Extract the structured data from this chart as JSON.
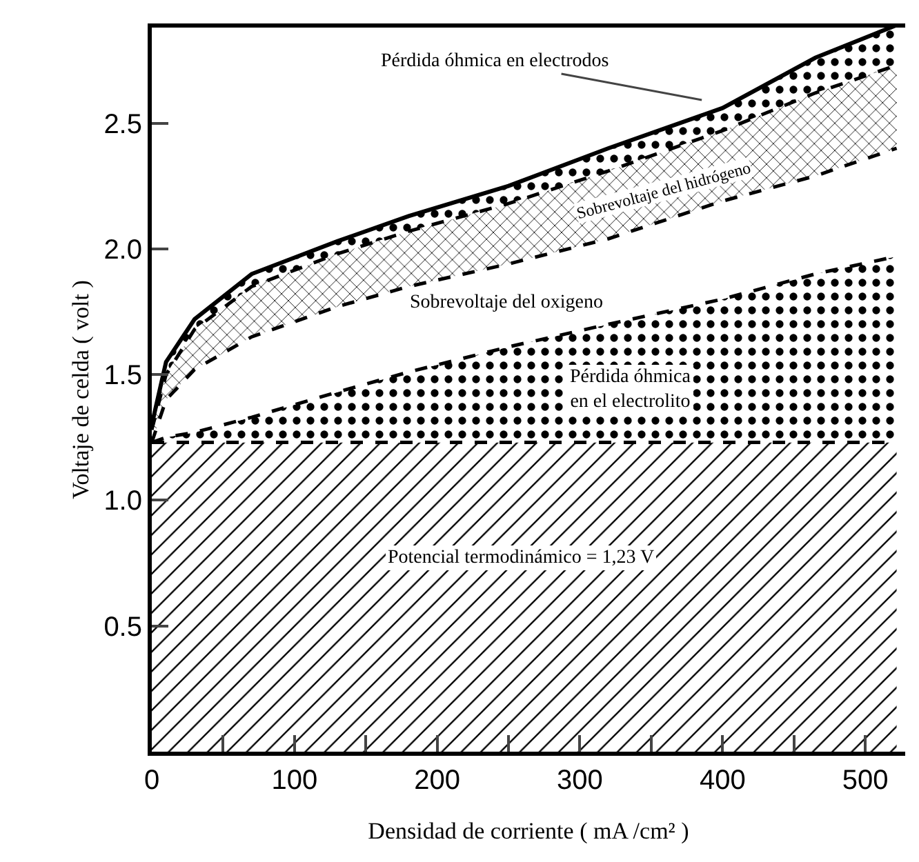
{
  "chart_data": {
    "type": "area",
    "stacked": true,
    "xlabel": "Densidad de corriente ( mA /cm² )",
    "ylabel": "Voltaje de celda ( volt )",
    "x": [
      0,
      10,
      30,
      70,
      130,
      180,
      250,
      320,
      400,
      465,
      522
    ],
    "series": [
      {
        "color": "#000000",
        "line_style": "dashed",
        "values": [
          1.23,
          1.23,
          1.23,
          1.23,
          1.23,
          1.23,
          1.23,
          1.23,
          1.23,
          1.23,
          1.23
        ]
      },
      {
        "color": "#000000",
        "line_style": "dashed",
        "values": [
          0,
          0.02,
          0.04,
          0.1,
          0.2,
          0.28,
          0.38,
          0.47,
          0.57,
          0.67,
          0.74
        ]
      },
      {
        "color": "#000000",
        "line_style": "dashed",
        "values": [
          0,
          0.15,
          0.25,
          0.32,
          0.34,
          0.34,
          0.33,
          0.34,
          0.39,
          0.39,
          0.43
        ]
      },
      {
        "color": "#000000",
        "line_style": "dashed",
        "values": [
          0.05,
          0.1,
          0.16,
          0.2,
          0.21,
          0.22,
          0.24,
          0.27,
          0.28,
          0.33,
          0.33
        ]
      },
      {
        "color": "#000000",
        "line_style": "solid",
        "values": [
          0.02,
          0.05,
          0.04,
          0.05,
          0.05,
          0.06,
          0.07,
          0.09,
          0.09,
          0.14,
          0.16
        ]
      }
    ],
    "xlim": [
      0,
      528
    ],
    "ylim": [
      0,
      2.88
    ],
    "xticks": [
      0,
      {
        "value": 50,
        "label": null
      },
      100,
      {
        "value": 150,
        "label": null
      },
      200,
      {
        "value": 250,
        "label": null
      },
      300,
      {
        "value": 350,
        "label": null
      },
      400,
      {
        "value": 450,
        "label": null
      },
      500
    ],
    "yticks": [
      0.5,
      {
        "value": 1,
        "label": "1.0"
      },
      1.5,
      {
        "value": 2,
        "label": "2.0"
      },
      2.5
    ],
    "grid": false,
    "legend": false,
    "annotations": [
      "Pérdida óhmica en electrodos",
      "Sobrevoltaje del hidrógeno",
      "Sobrevoltaje del oxigeno",
      "Pérdida óhmica\nen el electrolito",
      "Potencial termodinámico = 1,23 V"
    ]
  }
}
